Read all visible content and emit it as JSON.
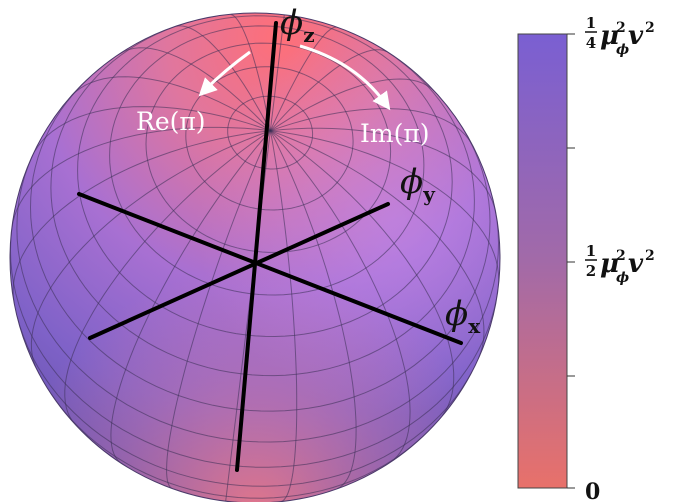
{
  "axes": {
    "z": "ϕ",
    "z_sub": "z",
    "y": "ϕ",
    "y_sub": "y",
    "x": "ϕ",
    "x_sub": "x"
  },
  "arrows": {
    "left": "Re(π)",
    "right": "Im(π)"
  },
  "colorbar": {
    "top": {
      "frac_num": "1",
      "frac_den": "4",
      "mu": "μ",
      "mu_sup": "2",
      "mu_sub": "ϕ",
      "v": "v",
      "v_sup": "2"
    },
    "mid": {
      "frac_num": "1",
      "frac_den": "2",
      "mu": "μ",
      "mu_sup": "2",
      "mu_sub": "ϕ",
      "v": "v",
      "v_sup": "2"
    },
    "bottom": "0",
    "color_low": "#e8716a",
    "color_high": "#7a5fd2"
  }
}
